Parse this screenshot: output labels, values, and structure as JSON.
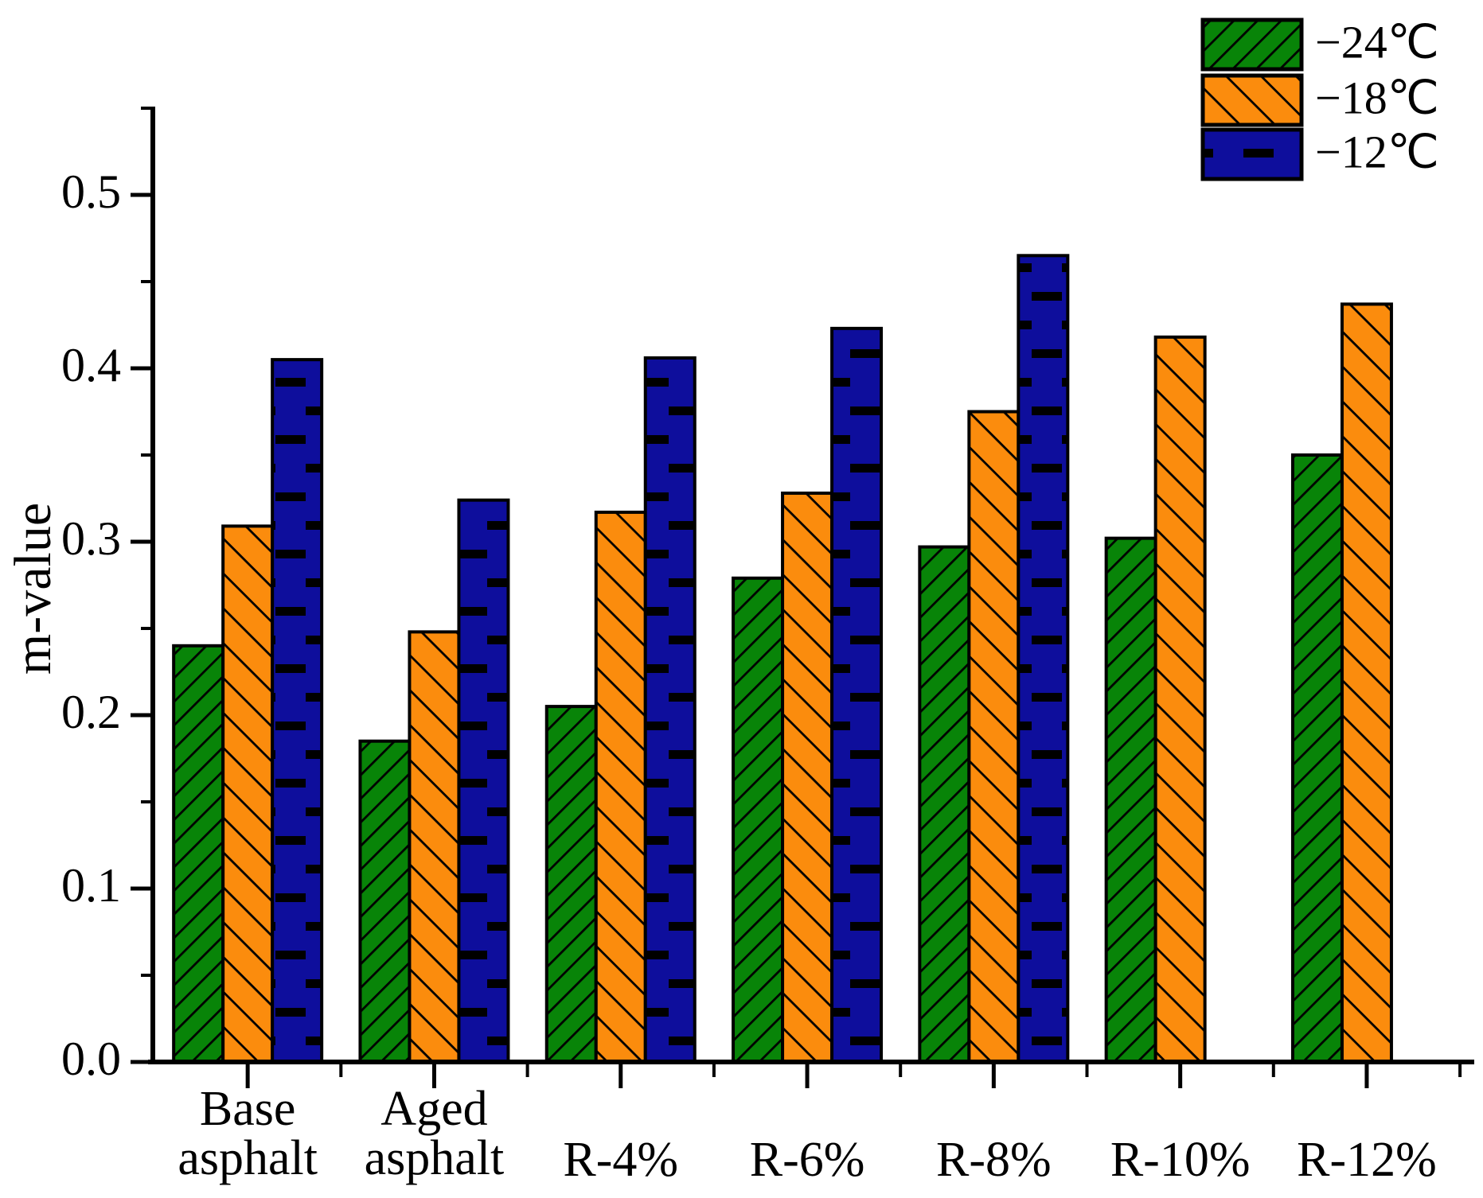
{
  "chart_data": {
    "type": "bar",
    "title": "",
    "xlabel": "",
    "ylabel": "m-value",
    "categories": [
      "Base asphalt",
      "Aged asphalt",
      "R-4%",
      "R-6%",
      "R-8%",
      "R-10%",
      "R-12%"
    ],
    "category_lines": [
      [
        "Base",
        "asphalt"
      ],
      [
        "Aged",
        "asphalt"
      ],
      [
        "R-4%"
      ],
      [
        "R-6%"
      ],
      [
        "R-8%"
      ],
      [
        "R-10%"
      ],
      [
        "R-12%"
      ]
    ],
    "series": [
      {
        "name": "−24℃",
        "color": "#088408",
        "hatch": "forward-diagonal",
        "values": [
          0.24,
          0.185,
          0.205,
          0.279,
          0.297,
          0.302,
          0.35
        ]
      },
      {
        "name": "−18℃",
        "color": "#FB8C0D",
        "hatch": "backward-diagonal",
        "values": [
          0.309,
          0.248,
          0.317,
          0.328,
          0.375,
          0.418,
          0.437
        ]
      },
      {
        "name": "−12℃",
        "color": "#0E0E9C",
        "hatch": "horizontal-dashes",
        "values": [
          0.405,
          0.324,
          0.406,
          0.423,
          0.465,
          null,
          null
        ]
      }
    ],
    "ylim": [
      0,
      0.55
    ],
    "yticks": [
      0.0,
      0.1,
      0.2,
      0.3,
      0.4,
      0.5
    ],
    "ytick_labels": [
      "0.0",
      "0.1",
      "0.2",
      "0.3",
      "0.4",
      "0.5"
    ],
    "minor_tick_step": 0.05,
    "grid": false,
    "legend_position": "top-right",
    "axis_color": "#000000",
    "bar_outline_color": "#000000"
  }
}
